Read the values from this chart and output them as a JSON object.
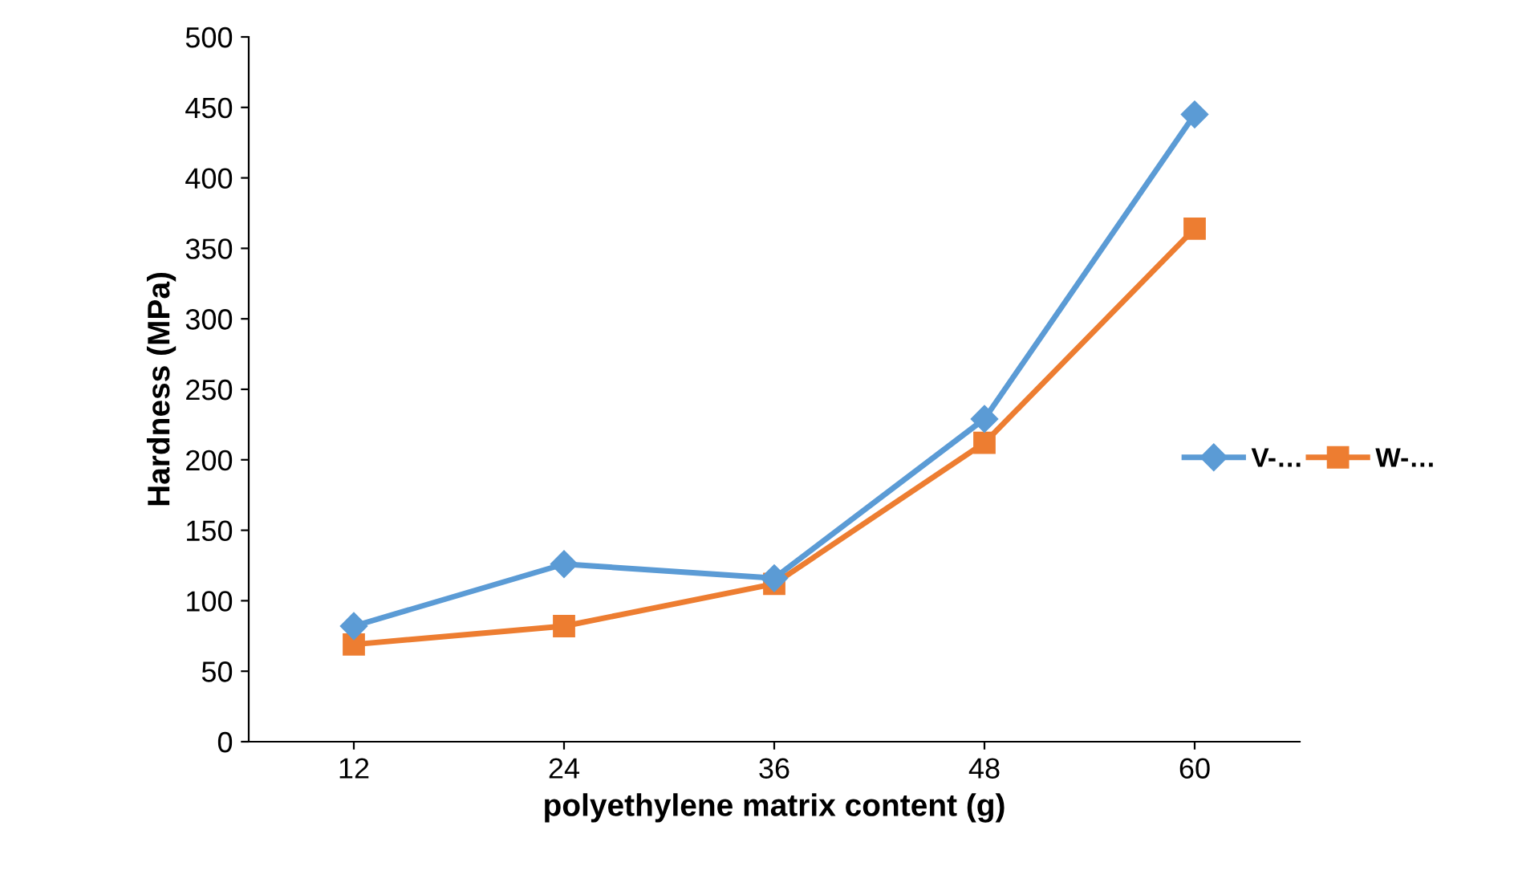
{
  "chart_data": {
    "type": "line",
    "xlabel": "polyethylene matrix content (g)",
    "ylabel": "Hardness (MPa)",
    "categories": [
      "12",
      "24",
      "36",
      "48",
      "60"
    ],
    "series": [
      {
        "name": "V-…",
        "color": "#5b9bd5",
        "marker": "diamond",
        "values": [
          82,
          126,
          116,
          229,
          445
        ]
      },
      {
        "name": "W-…",
        "color": "#ed7d31",
        "marker": "square",
        "values": [
          69,
          82,
          112,
          212,
          364
        ]
      }
    ],
    "ylim": [
      0,
      500
    ],
    "yticks": [
      0,
      50,
      100,
      150,
      200,
      250,
      300,
      350,
      400,
      450,
      500
    ],
    "grid": false,
    "legend": "right"
  }
}
